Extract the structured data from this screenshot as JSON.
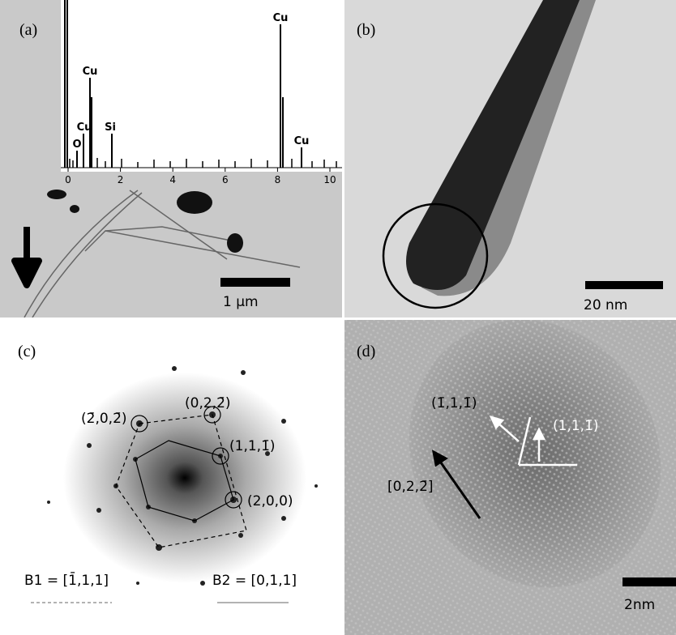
{
  "panels": [
    {
      "label": "(a)",
      "scale_bar": "1 µm",
      "spectrum": {
        "x_ticks": [
          "0",
          "2",
          "4",
          "6",
          "8",
          "10"
        ],
        "peaks": [
          "Cu",
          "Cu",
          "O",
          "Si",
          "Cu",
          "Cu"
        ]
      }
    },
    {
      "label": "(b)",
      "scale_bar": "20 nm"
    },
    {
      "label": "(c)",
      "spots": [
        "(2̄,0,2̄)",
        "(0,2,2̄)",
        "(1,1,1̄)",
        "(2,0,0)"
      ],
      "zone_axes": [
        "B1 = [1̄,1,1]",
        "B2 = [0,1,1]"
      ]
    },
    {
      "label": "(d)",
      "annotations": [
        "(1̄,1,1̄)",
        "(1,1,1̄)",
        "[0,2,2̄]"
      ],
      "scale_bar": "2nm"
    }
  ]
}
